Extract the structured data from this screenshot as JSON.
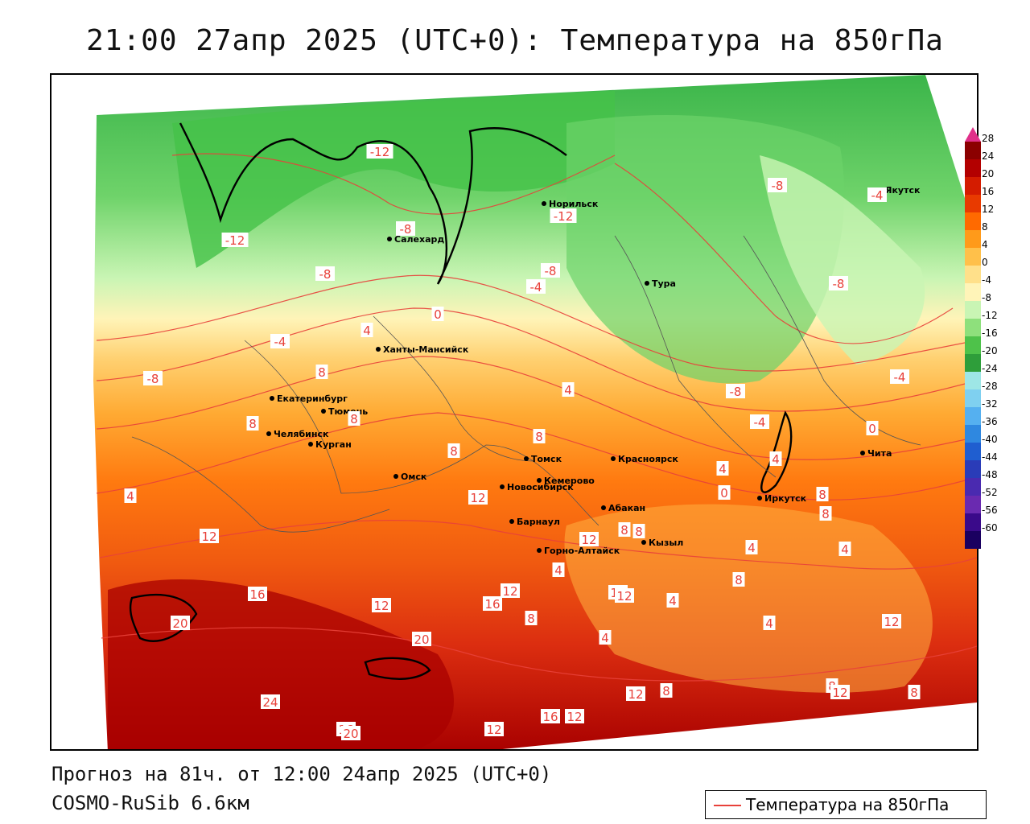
{
  "header": {
    "title": "21:00 27апр 2025 (UTC+0): Температура на 850гПа"
  },
  "footer": {
    "forecast": "Прогноз на 81ч. от 12:00 24апр 2025 (UTC+0)",
    "model": "COSMO-RuSib 6.6км"
  },
  "legend": {
    "label": "Температура на 850гПа",
    "line_color": "#e8413a"
  },
  "colorbar": {
    "labels": [
      "28",
      "24",
      "20",
      "16",
      "12",
      "8",
      "4",
      "0",
      "-4",
      "-8",
      "-12",
      "-16",
      "-20",
      "-24",
      "-28",
      "-32",
      "-36",
      "-40",
      "-44",
      "-48",
      "-52",
      "-56",
      "-60"
    ],
    "colors": [
      "#8b0000",
      "#b30000",
      "#d41c00",
      "#e83a00",
      "#ff6a00",
      "#ff9a1a",
      "#ffc04a",
      "#ffe08a",
      "#fff4b8",
      "#c9f5b4",
      "#8ee07c",
      "#4ec24a",
      "#2e9e3a",
      "#9ee6e6",
      "#7fd0f0",
      "#55b0f0",
      "#2f88e0",
      "#1f5ed0",
      "#2a3cb8",
      "#4a2ab0",
      "#6a2ab0",
      "#3a0a8a",
      "#1a0060"
    ]
  },
  "cities": [
    {
      "name": "Якутск"
    },
    {
      "name": "Норильск"
    },
    {
      "name": "Салехард"
    },
    {
      "name": "Тура"
    },
    {
      "name": "Ханты-Мансийск"
    },
    {
      "name": "Екатеринбург"
    },
    {
      "name": "Тюмень"
    },
    {
      "name": "Челябинск"
    },
    {
      "name": "Курган"
    },
    {
      "name": "Омск"
    },
    {
      "name": "Томск"
    },
    {
      "name": "Новосибирск"
    },
    {
      "name": "Кемерово"
    },
    {
      "name": "Красноярск"
    },
    {
      "name": "Барнаул"
    },
    {
      "name": "Абакан"
    },
    {
      "name": "Горно-Алтайск"
    },
    {
      "name": "Кызыл"
    },
    {
      "name": "Иркутск"
    },
    {
      "name": "Чита"
    }
  ],
  "contour_labels": [
    "-12",
    "-8",
    "-12",
    "-8",
    "-12",
    "-8",
    "-4",
    "-8",
    "-4",
    "-8",
    "-4",
    "-8",
    "-8",
    "-4",
    "4",
    "0",
    "4",
    "-4",
    "0",
    "8",
    "4",
    "8",
    "8",
    "8",
    "8",
    "0",
    "4",
    "12",
    "4",
    "8",
    "4",
    "4",
    "8",
    "12",
    "12",
    "8",
    "12",
    "16",
    "12",
    "16",
    "20",
    "20",
    "12",
    "8",
    "4",
    "12",
    "4",
    "8",
    "4",
    "8",
    "4",
    "8",
    "12",
    "24",
    "16",
    "20",
    "12",
    "16",
    "12",
    "8",
    "12",
    "8",
    "12"
  ]
}
